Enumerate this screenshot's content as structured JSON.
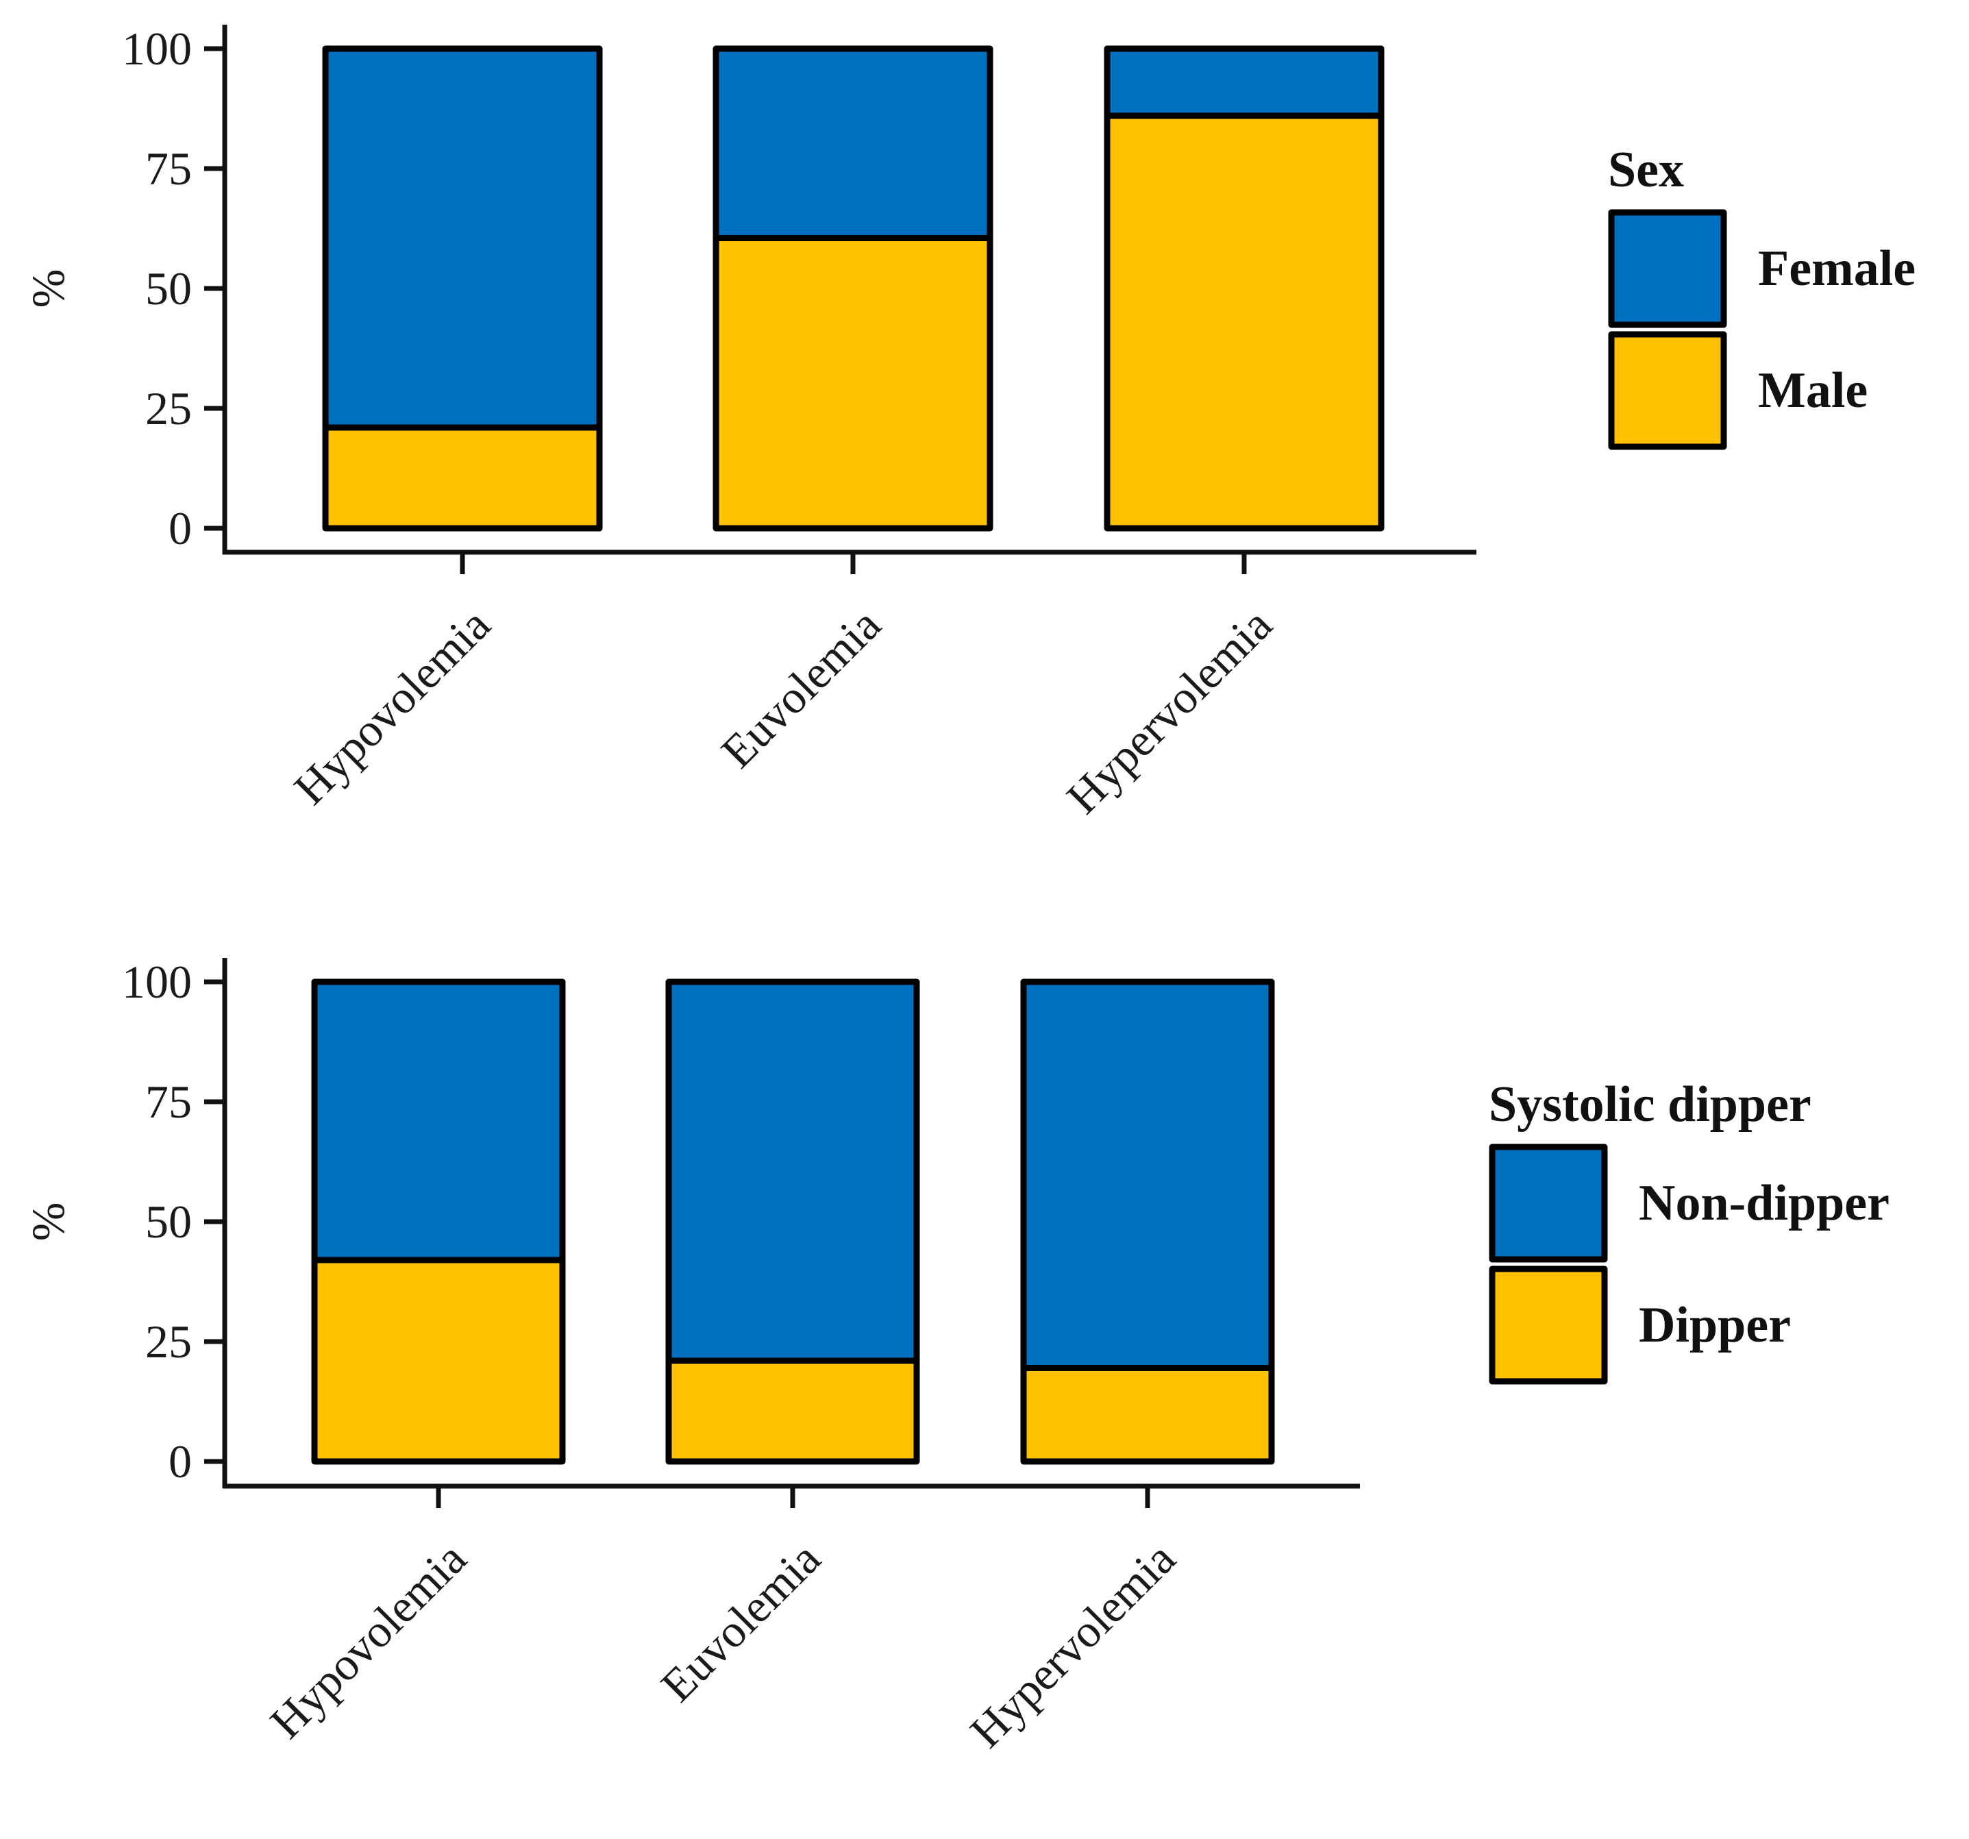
{
  "chart_data": [
    {
      "type": "bar",
      "stacked": true,
      "categories": [
        "Hypovolemia",
        "Euvolemia",
        "Hypervolemia"
      ],
      "series": [
        {
          "name": "Male",
          "color": "#FFC000",
          "values": [
            21,
            60.5,
            86
          ]
        },
        {
          "name": "Female",
          "color": "#0070C0",
          "values": [
            79,
            39.5,
            14
          ]
        }
      ],
      "ylabel": "%",
      "yticks": [
        0,
        25,
        50,
        75,
        100
      ],
      "ylim": [
        0,
        100
      ],
      "legend": {
        "title": "Sex",
        "entries": [
          "Female",
          "Male"
        ],
        "placement": "right"
      }
    },
    {
      "type": "bar",
      "stacked": true,
      "categories": [
        "Hypovolemia",
        "Euvolemia",
        "Hypervolemia"
      ],
      "series": [
        {
          "name": "Dipper",
          "color": "#FFC000",
          "values": [
            42,
            21,
            19.5
          ]
        },
        {
          "name": "Non-dipper",
          "color": "#0070C0",
          "values": [
            58,
            79,
            80.5
          ]
        }
      ],
      "ylabel": "%",
      "yticks": [
        0,
        25,
        50,
        75,
        100
      ],
      "ylim": [
        0,
        100
      ],
      "legend": {
        "title": "Systolic dipper",
        "entries": [
          "Non-dipper",
          "Dipper"
        ],
        "placement": "right"
      }
    }
  ]
}
